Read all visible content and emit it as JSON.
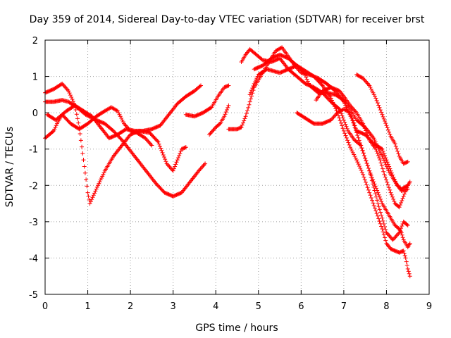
{
  "chart_data": {
    "type": "scatter",
    "title": "Day 359 of 2014, Sidereal Day-to-day VTEC variation (SDTVAR) for receiver brst",
    "xlabel": "GPS time / hours",
    "ylabel": "SDTVAR / TECUs",
    "xlim": [
      0,
      9
    ],
    "ylim": [
      -5,
      2
    ],
    "xticks": [
      "0",
      "1",
      "2",
      "3",
      "4",
      "5",
      "6",
      "7",
      "8",
      "9"
    ],
    "yticks": [
      "-5",
      "-4",
      "-3",
      "-2",
      "-1",
      "0",
      "1",
      "2"
    ],
    "grid": true,
    "marker": "+",
    "color": "#ff0000",
    "series": [
      {
        "name": "track-1",
        "points": [
          [
            0.0,
            0.55
          ],
          [
            0.2,
            0.65
          ],
          [
            0.4,
            0.8
          ],
          [
            0.55,
            0.6
          ],
          [
            0.7,
            0.2
          ],
          [
            0.8,
            -0.4
          ],
          [
            0.9,
            -1.3
          ],
          [
            1.0,
            -2.2
          ],
          [
            1.05,
            -2.5
          ],
          [
            1.2,
            -2.1
          ],
          [
            1.4,
            -1.6
          ],
          [
            1.6,
            -1.2
          ],
          [
            1.8,
            -0.9
          ],
          [
            2.0,
            -0.6
          ],
          [
            2.2,
            -0.5
          ],
          [
            2.45,
            -0.55
          ],
          [
            2.65,
            -0.8
          ],
          [
            2.85,
            -1.4
          ],
          [
            3.0,
            -1.6
          ],
          [
            3.1,
            -1.3
          ],
          [
            3.2,
            -1.0
          ],
          [
            3.3,
            -0.95
          ]
        ]
      },
      {
        "name": "track-2",
        "points": [
          [
            0.0,
            0.3
          ],
          [
            0.2,
            0.3
          ],
          [
            0.4,
            0.35
          ],
          [
            0.55,
            0.3
          ],
          [
            0.75,
            0.15
          ],
          [
            0.95,
            -0.05
          ],
          [
            1.2,
            -0.2
          ],
          [
            1.4,
            -0.3
          ],
          [
            1.6,
            -0.5
          ],
          [
            1.8,
            -0.75
          ],
          [
            2.0,
            -1.05
          ],
          [
            2.2,
            -1.35
          ],
          [
            2.4,
            -1.65
          ],
          [
            2.6,
            -1.95
          ],
          [
            2.8,
            -2.2
          ],
          [
            3.0,
            -2.3
          ],
          [
            3.2,
            -2.2
          ],
          [
            3.4,
            -1.9
          ],
          [
            3.6,
            -1.6
          ],
          [
            3.75,
            -1.4
          ]
        ]
      },
      {
        "name": "track-3",
        "points": [
          [
            0.0,
            -0.7
          ],
          [
            0.2,
            -0.5
          ],
          [
            0.3,
            -0.25
          ],
          [
            0.4,
            -0.05
          ],
          [
            0.6,
            -0.3
          ],
          [
            0.8,
            -0.45
          ],
          [
            1.0,
            -0.3
          ],
          [
            1.2,
            -0.1
          ],
          [
            1.4,
            0.05
          ],
          [
            1.55,
            0.15
          ],
          [
            1.7,
            0.05
          ],
          [
            1.85,
            -0.3
          ],
          [
            2.0,
            -0.5
          ],
          [
            2.15,
            -0.55
          ],
          [
            2.35,
            -0.7
          ],
          [
            2.5,
            -0.9
          ]
        ]
      },
      {
        "name": "track-4",
        "points": [
          [
            0.05,
            -0.05
          ],
          [
            0.25,
            -0.2
          ],
          [
            0.5,
            0.05
          ],
          [
            0.7,
            0.2
          ],
          [
            0.9,
            0.05
          ],
          [
            1.1,
            -0.1
          ],
          [
            1.3,
            -0.4
          ],
          [
            1.5,
            -0.7
          ],
          [
            1.7,
            -0.6
          ],
          [
            1.9,
            -0.45
          ],
          [
            2.1,
            -0.5
          ],
          [
            2.3,
            -0.5
          ],
          [
            2.5,
            -0.45
          ],
          [
            2.7,
            -0.35
          ],
          [
            2.9,
            -0.05
          ],
          [
            3.1,
            0.25
          ],
          [
            3.3,
            0.45
          ],
          [
            3.5,
            0.6
          ],
          [
            3.65,
            0.75
          ]
        ]
      },
      {
        "name": "track-5",
        "points": [
          [
            3.3,
            -0.05
          ],
          [
            3.5,
            -0.1
          ],
          [
            3.7,
            0.0
          ],
          [
            3.9,
            0.15
          ],
          [
            4.05,
            0.45
          ],
          [
            4.2,
            0.7
          ],
          [
            4.3,
            0.75
          ]
        ]
      },
      {
        "name": "track-6",
        "points": [
          [
            3.85,
            -0.6
          ],
          [
            4.0,
            -0.4
          ],
          [
            4.1,
            -0.3
          ],
          [
            4.2,
            -0.1
          ],
          [
            4.3,
            0.2
          ]
        ]
      },
      {
        "name": "track-7",
        "points": [
          [
            4.3,
            -0.45
          ],
          [
            4.5,
            -0.45
          ],
          [
            4.6,
            -0.4
          ],
          [
            4.7,
            -0.1
          ],
          [
            4.8,
            0.3
          ],
          [
            4.9,
            0.7
          ],
          [
            5.05,
            1.0
          ],
          [
            5.2,
            1.3
          ],
          [
            5.4,
            1.7
          ],
          [
            5.55,
            1.8
          ],
          [
            5.7,
            1.55
          ],
          [
            5.85,
            1.3
          ],
          [
            6.0,
            1.1
          ],
          [
            6.2,
            1.05
          ],
          [
            6.4,
            0.95
          ],
          [
            6.6,
            0.8
          ],
          [
            6.8,
            0.6
          ],
          [
            7.0,
            0.3
          ],
          [
            7.2,
            -0.2
          ],
          [
            7.4,
            -0.9
          ],
          [
            7.6,
            -1.6
          ],
          [
            7.8,
            -2.5
          ],
          [
            8.0,
            -3.3
          ],
          [
            8.15,
            -3.5
          ],
          [
            8.3,
            -3.3
          ],
          [
            8.4,
            -3.0
          ],
          [
            8.5,
            -3.1
          ]
        ]
      },
      {
        "name": "track-8",
        "points": [
          [
            4.6,
            1.4
          ],
          [
            4.7,
            1.6
          ],
          [
            4.8,
            1.75
          ],
          [
            4.95,
            1.6
          ],
          [
            5.1,
            1.45
          ],
          [
            5.3,
            1.4
          ],
          [
            5.5,
            1.5
          ],
          [
            5.7,
            1.2
          ],
          [
            5.9,
            1.0
          ],
          [
            6.1,
            0.8
          ],
          [
            6.3,
            0.7
          ],
          [
            6.5,
            0.55
          ],
          [
            6.7,
            0.3
          ],
          [
            6.9,
            0.1
          ],
          [
            7.0,
            -0.2
          ],
          [
            7.1,
            -0.5
          ],
          [
            7.25,
            -0.75
          ],
          [
            7.4,
            -0.9
          ],
          [
            7.5,
            -1.25
          ],
          [
            7.6,
            -1.6
          ],
          [
            7.7,
            -1.9
          ],
          [
            7.8,
            -2.2
          ],
          [
            7.9,
            -2.5
          ],
          [
            8.0,
            -2.7
          ],
          [
            8.1,
            -2.9
          ],
          [
            8.2,
            -3.1
          ],
          [
            8.3,
            -3.2
          ],
          [
            8.35,
            -3.3
          ],
          [
            8.4,
            -3.5
          ],
          [
            8.5,
            -3.7
          ],
          [
            8.55,
            -3.6
          ]
        ]
      },
      {
        "name": "track-9",
        "points": [
          [
            4.9,
            1.2
          ],
          [
            5.1,
            1.3
          ],
          [
            5.3,
            1.5
          ],
          [
            5.5,
            1.6
          ],
          [
            5.7,
            1.5
          ],
          [
            5.9,
            1.3
          ],
          [
            6.1,
            1.15
          ],
          [
            6.3,
            1.0
          ],
          [
            6.5,
            0.75
          ],
          [
            6.7,
            0.4
          ],
          [
            6.85,
            0.0
          ],
          [
            7.0,
            -0.5
          ],
          [
            7.15,
            -0.95
          ],
          [
            7.3,
            -1.3
          ],
          [
            7.45,
            -1.7
          ],
          [
            7.6,
            -2.2
          ],
          [
            7.75,
            -2.7
          ],
          [
            7.9,
            -3.2
          ],
          [
            8.0,
            -3.6
          ],
          [
            8.1,
            -3.75
          ],
          [
            8.2,
            -3.8
          ],
          [
            8.3,
            -3.85
          ],
          [
            8.4,
            -3.8
          ],
          [
            8.45,
            -4.0
          ],
          [
            8.5,
            -4.3
          ],
          [
            8.55,
            -4.5
          ]
        ]
      },
      {
        "name": "track-10",
        "points": [
          [
            4.8,
            0.5
          ],
          [
            4.9,
            0.8
          ],
          [
            5.0,
            1.05
          ],
          [
            5.2,
            1.2
          ],
          [
            5.5,
            1.1
          ],
          [
            5.7,
            1.2
          ],
          [
            5.9,
            1.3
          ],
          [
            6.05,
            1.15
          ],
          [
            6.2,
            0.75
          ],
          [
            6.4,
            0.55
          ],
          [
            6.6,
            0.55
          ],
          [
            6.8,
            0.5
          ],
          [
            7.0,
            0.35
          ],
          [
            7.15,
            0.1
          ],
          [
            7.3,
            -0.2
          ],
          [
            7.5,
            -0.4
          ],
          [
            7.7,
            -0.7
          ],
          [
            7.9,
            -1.2
          ],
          [
            8.05,
            -1.6
          ],
          [
            8.2,
            -1.9
          ],
          [
            8.35,
            -2.15
          ],
          [
            8.5,
            -2.1
          ]
        ]
      },
      {
        "name": "track-11",
        "points": [
          [
            5.9,
            0.0
          ],
          [
            6.1,
            -0.15
          ],
          [
            6.3,
            -0.3
          ],
          [
            6.5,
            -0.3
          ],
          [
            6.7,
            -0.2
          ],
          [
            6.85,
            0.0
          ],
          [
            7.0,
            0.1
          ],
          [
            7.15,
            0.0
          ],
          [
            7.3,
            -0.5
          ],
          [
            7.5,
            -0.6
          ],
          [
            7.7,
            -0.85
          ],
          [
            7.9,
            -1.0
          ],
          [
            8.1,
            -1.6
          ],
          [
            8.25,
            -2.0
          ],
          [
            8.35,
            -2.1
          ],
          [
            8.5,
            -2.0
          ],
          [
            8.55,
            -1.9
          ]
        ]
      },
      {
        "name": "track-12",
        "points": [
          [
            6.35,
            0.35
          ],
          [
            6.5,
            0.6
          ],
          [
            6.7,
            0.7
          ],
          [
            6.9,
            0.6
          ],
          [
            7.0,
            0.45
          ],
          [
            7.15,
            0.2
          ],
          [
            7.3,
            0.0
          ],
          [
            7.45,
            -0.3
          ],
          [
            7.6,
            -0.75
          ],
          [
            7.75,
            -1.0
          ],
          [
            7.85,
            -1.3
          ],
          [
            7.95,
            -1.7
          ],
          [
            8.1,
            -2.2
          ],
          [
            8.2,
            -2.5
          ],
          [
            8.3,
            -2.6
          ],
          [
            8.4,
            -2.3
          ],
          [
            8.5,
            -2.0
          ]
        ]
      },
      {
        "name": "track-13",
        "points": [
          [
            7.3,
            1.05
          ],
          [
            7.45,
            0.95
          ],
          [
            7.6,
            0.75
          ],
          [
            7.75,
            0.4
          ],
          [
            7.9,
            -0.05
          ],
          [
            8.0,
            -0.35
          ],
          [
            8.1,
            -0.65
          ],
          [
            8.2,
            -0.85
          ],
          [
            8.3,
            -1.2
          ],
          [
            8.4,
            -1.4
          ],
          [
            8.5,
            -1.35
          ]
        ]
      }
    ]
  }
}
